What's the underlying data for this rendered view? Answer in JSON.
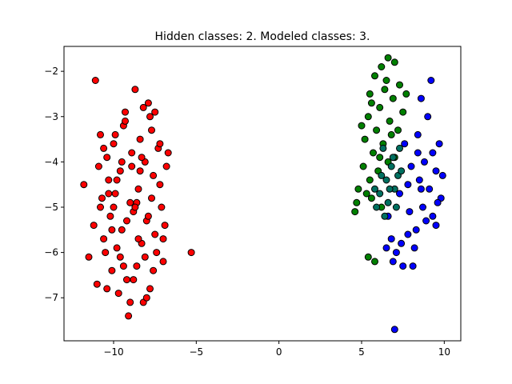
{
  "chart_data": {
    "type": "scatter",
    "title": "Hidden classes: 2. Modeled classes: 3.",
    "xlabel": "",
    "ylabel": "",
    "xlim": [
      -13,
      11
    ],
    "ylim": [
      -7.95,
      -1.45
    ],
    "xticks": [
      -10,
      -5,
      0,
      5,
      10
    ],
    "yticks": [
      -7,
      -6,
      -5,
      -4,
      -3,
      -2
    ],
    "xtick_labels": [
      "−10",
      "−5",
      "0",
      "5",
      "10"
    ],
    "ytick_labels": [
      "−7",
      "−6",
      "−5",
      "−4",
      "−3",
      "−2"
    ],
    "grid": false,
    "legend": false,
    "marker_edge_color": "#000000",
    "series": [
      {
        "color": "#ff0000",
        "points": [
          [
            -11.8,
            -4.5
          ],
          [
            -11.5,
            -6.1
          ],
          [
            -11.1,
            -2.2
          ],
          [
            -11.0,
            -6.7
          ],
          [
            -11.2,
            -5.4
          ],
          [
            -10.9,
            -4.1
          ],
          [
            -10.8,
            -3.4
          ],
          [
            -10.7,
            -4.8
          ],
          [
            -10.6,
            -5.7
          ],
          [
            -10.5,
            -6.0
          ],
          [
            -10.4,
            -3.9
          ],
          [
            -10.3,
            -4.4
          ],
          [
            -10.2,
            -5.2
          ],
          [
            -10.1,
            -6.4
          ],
          [
            -10.0,
            -3.6
          ],
          [
            -9.9,
            -4.7
          ],
          [
            -9.8,
            -5.9
          ],
          [
            -9.7,
            -6.9
          ],
          [
            -9.6,
            -4.2
          ],
          [
            -9.5,
            -5.5
          ],
          [
            -9.4,
            -3.2
          ],
          [
            -9.3,
            -2.9
          ],
          [
            -9.2,
            -6.6
          ],
          [
            -9.1,
            -7.4
          ],
          [
            -9.0,
            -4.9
          ],
          [
            -8.9,
            -3.8
          ],
          [
            -8.8,
            -5.1
          ],
          [
            -8.7,
            -2.4
          ],
          [
            -8.6,
            -6.3
          ],
          [
            -8.5,
            -4.6
          ],
          [
            -8.4,
            -3.5
          ],
          [
            -8.3,
            -5.8
          ],
          [
            -8.2,
            -7.1
          ],
          [
            -8.1,
            -4.0
          ],
          [
            -8.0,
            -5.3
          ],
          [
            -7.9,
            -2.7
          ],
          [
            -7.8,
            -6.8
          ],
          [
            -7.7,
            -3.3
          ],
          [
            -7.6,
            -4.3
          ],
          [
            -7.5,
            -5.6
          ],
          [
            -7.4,
            -6.0
          ],
          [
            -7.3,
            -3.7
          ],
          [
            -7.2,
            -4.5
          ],
          [
            -7.1,
            -5.0
          ],
          [
            -7.0,
            -6.2
          ],
          [
            -6.9,
            -5.4
          ],
          [
            -6.8,
            -4.1
          ],
          [
            -6.7,
            -3.8
          ],
          [
            -5.3,
            -6.0
          ],
          [
            -8.2,
            -2.8
          ],
          [
            -9.3,
            -3.1
          ],
          [
            -10.0,
            -5.0
          ],
          [
            -9.6,
            -6.1
          ],
          [
            -8.8,
            -6.6
          ],
          [
            -7.8,
            -3.0
          ],
          [
            -8.0,
            -7.0
          ],
          [
            -10.4,
            -6.8
          ],
          [
            -9.0,
            -7.1
          ],
          [
            -7.5,
            -2.9
          ],
          [
            -10.6,
            -3.7
          ],
          [
            -9.8,
            -4.4
          ],
          [
            -8.6,
            -4.9
          ],
          [
            -7.9,
            -5.2
          ],
          [
            -8.5,
            -5.7
          ],
          [
            -9.2,
            -5.3
          ],
          [
            -10.1,
            -5.5
          ],
          [
            -8.9,
            -4.1
          ],
          [
            -7.7,
            -4.8
          ],
          [
            -8.3,
            -3.9
          ],
          [
            -9.5,
            -4.0
          ],
          [
            -8.7,
            -5.0
          ],
          [
            -8.1,
            -6.1
          ],
          [
            -9.4,
            -6.3
          ],
          [
            -10.3,
            -4.7
          ],
          [
            -7.6,
            -6.4
          ],
          [
            -9.9,
            -3.4
          ],
          [
            -8.4,
            -4.2
          ],
          [
            -7.2,
            -3.6
          ],
          [
            -7.0,
            -5.7
          ],
          [
            -10.8,
            -5.0
          ]
        ]
      },
      {
        "color": "#008000",
        "points": [
          [
            6.6,
            -1.7
          ],
          [
            6.2,
            -1.9
          ],
          [
            7.0,
            -1.8
          ],
          [
            5.8,
            -2.1
          ],
          [
            7.3,
            -2.3
          ],
          [
            6.4,
            -2.4
          ],
          [
            5.5,
            -2.5
          ],
          [
            6.9,
            -2.6
          ],
          [
            7.7,
            -2.5
          ],
          [
            6.1,
            -2.8
          ],
          [
            5.4,
            -3.0
          ],
          [
            6.7,
            -3.1
          ],
          [
            5.9,
            -3.3
          ],
          [
            7.2,
            -3.3
          ],
          [
            5.2,
            -3.5
          ],
          [
            6.3,
            -3.6
          ],
          [
            5.7,
            -3.8
          ],
          [
            7.0,
            -3.9
          ],
          [
            5.1,
            -4.1
          ],
          [
            6.0,
            -4.2
          ],
          [
            5.5,
            -4.4
          ],
          [
            6.6,
            -4.0
          ],
          [
            4.8,
            -4.6
          ],
          [
            5.3,
            -4.7
          ],
          [
            4.7,
            -4.9
          ],
          [
            5.6,
            -4.8
          ],
          [
            4.6,
            -5.1
          ],
          [
            6.2,
            -5.0
          ],
          [
            5.4,
            -6.1
          ],
          [
            5.8,
            -6.2
          ],
          [
            6.8,
            -3.4
          ],
          [
            7.5,
            -2.9
          ],
          [
            6.5,
            -2.2
          ],
          [
            5.6,
            -2.7
          ],
          [
            6.1,
            -3.9
          ],
          [
            5.0,
            -3.2
          ]
        ]
      },
      {
        "color": "#0000ff",
        "points": [
          [
            9.2,
            -2.2
          ],
          [
            8.6,
            -2.6
          ],
          [
            9.0,
            -3.0
          ],
          [
            8.4,
            -3.4
          ],
          [
            9.7,
            -3.6
          ],
          [
            9.3,
            -3.8
          ],
          [
            8.8,
            -4.0
          ],
          [
            9.5,
            -4.2
          ],
          [
            9.9,
            -4.3
          ],
          [
            8.5,
            -4.4
          ],
          [
            9.1,
            -4.6
          ],
          [
            9.8,
            -4.8
          ],
          [
            9.6,
            -4.9
          ],
          [
            8.7,
            -5.0
          ],
          [
            9.3,
            -5.2
          ],
          [
            8.9,
            -5.3
          ],
          [
            9.5,
            -5.4
          ],
          [
            8.3,
            -5.5
          ],
          [
            7.8,
            -5.6
          ],
          [
            8.2,
            -5.9
          ],
          [
            7.4,
            -5.8
          ],
          [
            6.8,
            -5.7
          ],
          [
            6.5,
            -5.9
          ],
          [
            7.1,
            -6.0
          ],
          [
            6.9,
            -6.2
          ],
          [
            7.5,
            -6.3
          ],
          [
            8.1,
            -6.3
          ],
          [
            7.0,
            -7.7
          ],
          [
            7.8,
            -4.5
          ],
          [
            8.0,
            -4.1
          ],
          [
            7.3,
            -4.7
          ],
          [
            8.4,
            -3.8
          ],
          [
            7.9,
            -5.1
          ],
          [
            6.6,
            -5.2
          ],
          [
            8.6,
            -4.6
          ],
          [
            7.6,
            -3.6
          ]
        ]
      },
      {
        "color": "#007060",
        "points": [
          [
            6.3,
            -3.7
          ],
          [
            6.8,
            -4.1
          ],
          [
            6.5,
            -4.4
          ],
          [
            7.0,
            -4.6
          ],
          [
            6.1,
            -4.7
          ],
          [
            6.6,
            -4.9
          ],
          [
            7.1,
            -5.0
          ],
          [
            6.4,
            -5.2
          ],
          [
            5.9,
            -5.0
          ],
          [
            7.2,
            -4.3
          ],
          [
            6.9,
            -3.9
          ],
          [
            7.4,
            -4.2
          ],
          [
            6.2,
            -4.3
          ],
          [
            6.7,
            -4.6
          ],
          [
            5.8,
            -4.6
          ],
          [
            7.3,
            -3.7
          ]
        ]
      }
    ]
  }
}
